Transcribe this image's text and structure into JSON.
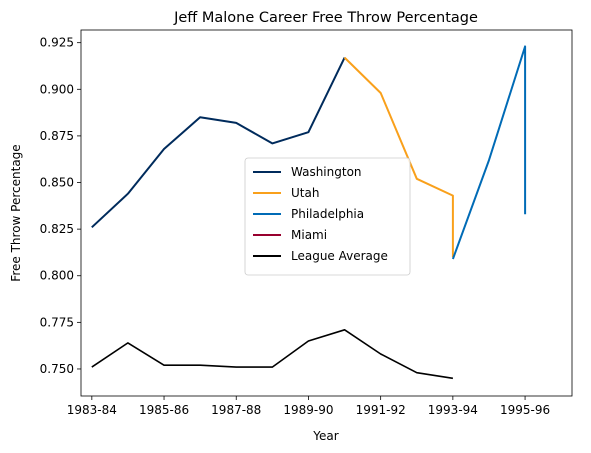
{
  "chart_data": {
    "type": "line",
    "title": "Jeff Malone Career Free Throw Percentage",
    "xlabel": "Year",
    "ylabel": "Free Throw Percentage",
    "x_ticks": [
      "1983-84",
      "1985-86",
      "1987-88",
      "1989-90",
      "1991-92",
      "1993-94",
      "1995-96"
    ],
    "y_ticks": [
      "0.750",
      "0.775",
      "0.800",
      "0.825",
      "0.850",
      "0.875",
      "0.900",
      "0.925"
    ],
    "xlim": [
      1982.7,
      1996.3
    ],
    "ylim": [
      0.7355,
      0.9318
    ],
    "legend_position": "center",
    "series": [
      {
        "name": "Washington",
        "color": "#002B5C",
        "points": [
          [
            1983,
            0.826
          ],
          [
            1984,
            0.844
          ],
          [
            1985,
            0.868
          ],
          [
            1986,
            0.885
          ],
          [
            1987,
            0.882
          ],
          [
            1988,
            0.871
          ],
          [
            1989,
            0.877
          ],
          [
            1990,
            0.917
          ]
        ]
      },
      {
        "name": "Utah",
        "color": "#F9A01B",
        "points": [
          [
            1990,
            0.917
          ],
          [
            1991,
            0.898
          ],
          [
            1992,
            0.852
          ],
          [
            1993,
            0.843
          ],
          [
            1993,
            0.81
          ]
        ]
      },
      {
        "name": "Philadelphia",
        "color": "#006BB6",
        "points": [
          [
            1993,
            0.809
          ],
          [
            1994,
            0.862
          ],
          [
            1995,
            0.923
          ],
          [
            1995,
            0.833
          ]
        ]
      },
      {
        "name": "Miami",
        "color": "#98002E",
        "points": []
      },
      {
        "name": "League Average",
        "color": "#000000",
        "points": [
          [
            1983,
            0.751
          ],
          [
            1984,
            0.764
          ],
          [
            1985,
            0.752
          ],
          [
            1986,
            0.752
          ],
          [
            1987,
            0.751
          ],
          [
            1988,
            0.751
          ],
          [
            1989,
            0.765
          ],
          [
            1990,
            0.771
          ],
          [
            1991,
            0.758
          ],
          [
            1992,
            0.748
          ],
          [
            1993,
            0.745
          ]
        ]
      }
    ]
  }
}
